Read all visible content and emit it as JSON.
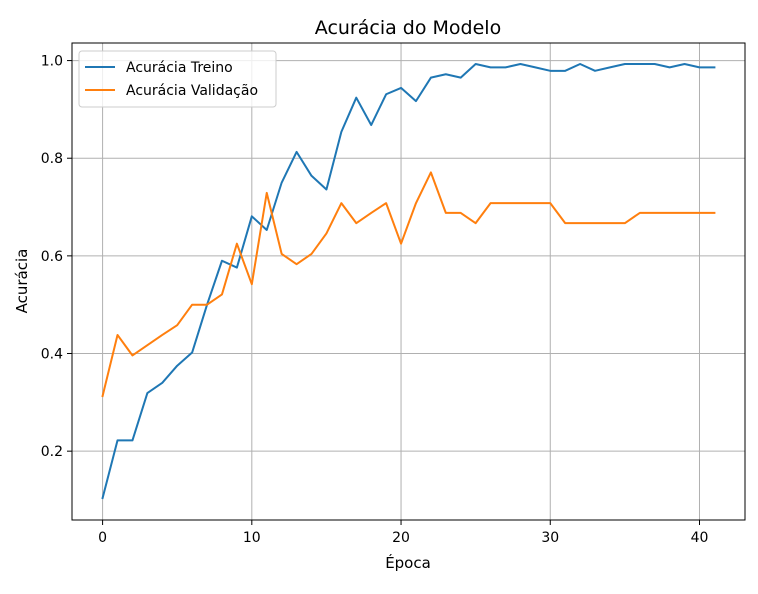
{
  "chart_data": {
    "type": "line",
    "title": "Acurácia do Modelo",
    "xlabel": "Época",
    "ylabel": "Acurácia",
    "xlim": [
      -2.05,
      43.05
    ],
    "ylim": [
      0.059,
      1.036
    ],
    "xticks": [
      0,
      10,
      20,
      30,
      40
    ],
    "xtick_labels": [
      "0",
      "10",
      "20",
      "30",
      "40"
    ],
    "yticks": [
      0.2,
      0.4,
      0.6,
      0.8,
      1.0
    ],
    "ytick_labels": [
      "0.2",
      "0.4",
      "0.6",
      "0.8",
      "1.0"
    ],
    "grid": true,
    "legend_position": "top-left",
    "x": [
      0,
      1,
      2,
      3,
      4,
      5,
      6,
      7,
      8,
      9,
      10,
      11,
      12,
      13,
      14,
      15,
      16,
      17,
      18,
      19,
      20,
      21,
      22,
      23,
      24,
      25,
      26,
      27,
      28,
      29,
      30,
      31,
      32,
      33,
      34,
      35,
      36,
      37,
      38,
      39,
      40,
      41
    ],
    "series": [
      {
        "name": "Acurácia Treino",
        "color": "#1f77b4",
        "values": [
          0.104,
          0.222,
          0.222,
          0.319,
          0.34,
          0.375,
          0.402,
          0.5,
          0.59,
          0.576,
          0.681,
          0.653,
          0.75,
          0.813,
          0.764,
          0.736,
          0.854,
          0.924,
          0.868,
          0.931,
          0.944,
          0.917,
          0.965,
          0.972,
          0.965,
          0.993,
          0.986,
          0.986,
          0.993,
          0.986,
          0.979,
          0.979,
          0.993,
          0.979,
          0.986,
          0.993,
          0.993,
          0.993,
          0.986,
          0.993,
          0.986,
          0.986
        ]
      },
      {
        "name": "Acurácia Validação",
        "color": "#ff7f0e",
        "values": [
          0.313,
          0.438,
          0.396,
          0.417,
          0.438,
          0.458,
          0.5,
          0.5,
          0.521,
          0.625,
          0.542,
          0.729,
          0.604,
          0.583,
          0.604,
          0.646,
          0.708,
          0.667,
          0.688,
          0.708,
          0.625,
          0.708,
          0.771,
          0.688,
          0.688,
          0.667,
          0.708,
          0.708,
          0.708,
          0.708,
          0.708,
          0.667,
          0.667,
          0.667,
          0.667,
          0.667,
          0.688,
          0.688,
          0.688,
          0.688,
          0.688,
          0.688
        ]
      }
    ]
  }
}
